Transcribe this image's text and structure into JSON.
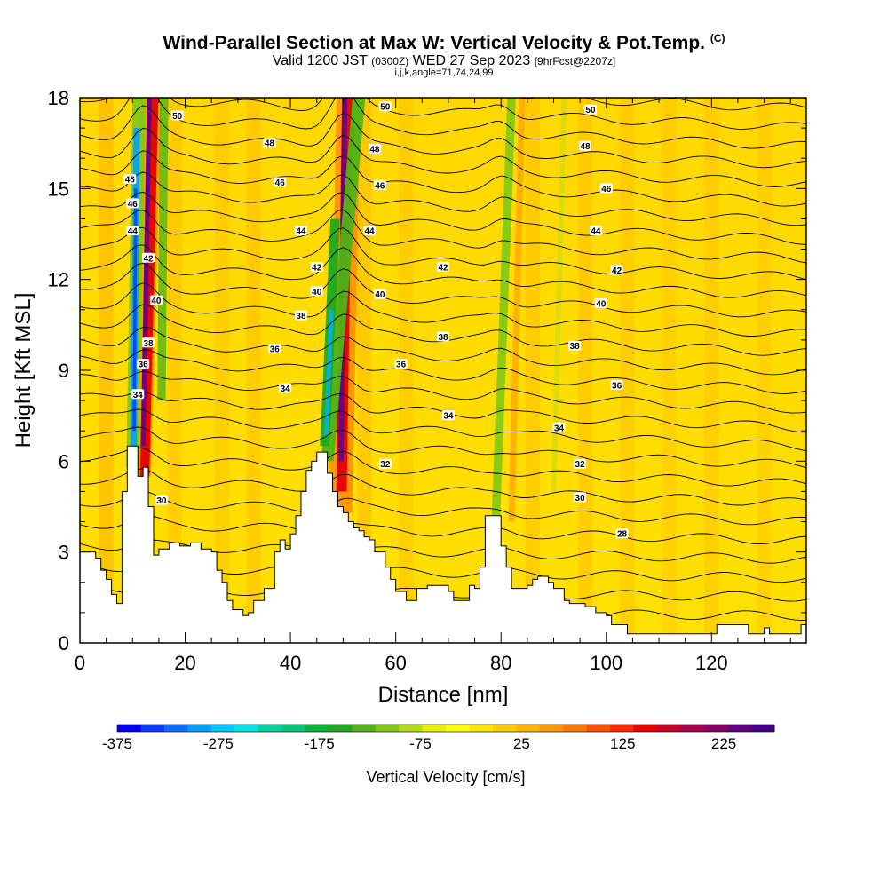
{
  "title": {
    "main": "Wind-Parallel Section at Max W: Vertical Velocity & Pot.Temp.",
    "copyright": "(C)",
    "valid_prefix": "Valid 1200 JST",
    "valid_utc": "(0300Z)",
    "valid_date": "WED 27 Sep 2023",
    "forecast": "[9hrFcst@2207z]",
    "params": "i,j,k,angle=71,74,24,99"
  },
  "chart_data": {
    "type": "heatmap",
    "xlabel": "Distance [nm]",
    "ylabel": "Height [Kft MSL]",
    "xlim": [
      0,
      138
    ],
    "ylim": [
      0,
      18
    ],
    "x_ticks": [
      "0",
      "20",
      "40",
      "60",
      "80",
      "100",
      "120"
    ],
    "x_tick_values": [
      0,
      20,
      40,
      60,
      80,
      100,
      120
    ],
    "y_ticks": [
      "0",
      "3",
      "6",
      "9",
      "12",
      "15",
      "18"
    ],
    "y_tick_values": [
      0,
      3,
      6,
      9,
      12,
      15,
      18
    ],
    "colorbar": {
      "label": "Vertical Velocity [cm/s]",
      "tick_labels": [
        "-375",
        "-275",
        "-175",
        "-75",
        "25",
        "125",
        "225"
      ],
      "min": -375,
      "max": 275,
      "colors": [
        "#0000ff",
        "#0a3cff",
        "#0a6eff",
        "#00a0ff",
        "#00c8ff",
        "#00e6e6",
        "#00d2a0",
        "#00c878",
        "#00b43c",
        "#1eaa1e",
        "#50b414",
        "#82c814",
        "#b4dc14",
        "#e6f000",
        "#ffff00",
        "#ffe600",
        "#ffcc00",
        "#ffb400",
        "#ff9600",
        "#ff7800",
        "#ff5000",
        "#ff2800",
        "#e60000",
        "#c80028",
        "#aa0050",
        "#8c0064",
        "#640082",
        "#46008c"
      ]
    },
    "contour_variable": "Potential temperature",
    "contour_levels": [
      28,
      30,
      32,
      34,
      36,
      38,
      40,
      42,
      44,
      46,
      48,
      50
    ],
    "contour_labels": [
      "28",
      "30",
      "32",
      "34",
      "36",
      "38",
      "40",
      "42",
      "44",
      "46",
      "48",
      "50"
    ],
    "updraft_cores_nm": [
      12,
      50
    ],
    "downdraft_cores_nm": [
      10.5,
      47.5
    ],
    "weak_downdraft_nm": [
      78,
      90
    ],
    "terrain_kft": [
      [
        0,
        3.0
      ],
      [
        2,
        3.0
      ],
      [
        3,
        2.8
      ],
      [
        4,
        2.4
      ],
      [
        5,
        2.1
      ],
      [
        6,
        1.6
      ],
      [
        7,
        1.3
      ],
      [
        8,
        5.0
      ],
      [
        9,
        6.5
      ],
      [
        10,
        6.5
      ],
      [
        11,
        5.5
      ],
      [
        12,
        5.8
      ],
      [
        13,
        4.5
      ],
      [
        14,
        2.9
      ],
      [
        15,
        3.1
      ],
      [
        17,
        3.3
      ],
      [
        19,
        3.2
      ],
      [
        21,
        3.3
      ],
      [
        23,
        3.1
      ],
      [
        25,
        3.0
      ],
      [
        26,
        2.4
      ],
      [
        27,
        2.0
      ],
      [
        28,
        1.4
      ],
      [
        29,
        1.1
      ],
      [
        30,
        1.1
      ],
      [
        31,
        0.9
      ],
      [
        32,
        1.0
      ],
      [
        33,
        1.4
      ],
      [
        35,
        1.8
      ],
      [
        37,
        3.0
      ],
      [
        38,
        3.4
      ],
      [
        39,
        3.1
      ],
      [
        40,
        3.6
      ],
      [
        41,
        4.2
      ],
      [
        42,
        5.0
      ],
      [
        43,
        5.7
      ],
      [
        44,
        6.0
      ],
      [
        45,
        6.3
      ],
      [
        46,
        6.3
      ],
      [
        47,
        5.6
      ],
      [
        48,
        5.0
      ],
      [
        49,
        4.5
      ],
      [
        50,
        4.3
      ],
      [
        51,
        4.0
      ],
      [
        52,
        3.8
      ],
      [
        53,
        3.7
      ],
      [
        54,
        3.5
      ],
      [
        55,
        3.4
      ],
      [
        56,
        3.0
      ],
      [
        58,
        2.5
      ],
      [
        59,
        2.1
      ],
      [
        60,
        1.7
      ],
      [
        62,
        1.4
      ],
      [
        63,
        1.4
      ],
      [
        64,
        1.8
      ],
      [
        66,
        1.9
      ],
      [
        68,
        1.9
      ],
      [
        70,
        1.7
      ],
      [
        71,
        1.4
      ],
      [
        72,
        1.4
      ],
      [
        74,
        1.9
      ],
      [
        75,
        1.8
      ],
      [
        76,
        2.5
      ],
      [
        77,
        4.2
      ],
      [
        79,
        4.2
      ],
      [
        80,
        3.2
      ],
      [
        81,
        2.5
      ],
      [
        82,
        1.8
      ],
      [
        83,
        1.8
      ],
      [
        85,
        1.9
      ],
      [
        86,
        2.1
      ],
      [
        87,
        2.2
      ],
      [
        89,
        2.0
      ],
      [
        90,
        1.8
      ],
      [
        92,
        1.4
      ],
      [
        93,
        1.3
      ],
      [
        96,
        1.2
      ],
      [
        98,
        1.0
      ],
      [
        100,
        0.9
      ],
      [
        101,
        0.6
      ],
      [
        103,
        0.6
      ],
      [
        104,
        0.3
      ],
      [
        120,
        0.3
      ],
      [
        121,
        0.6
      ],
      [
        126,
        0.6
      ],
      [
        127,
        0.3
      ],
      [
        129,
        0.3
      ],
      [
        130,
        0.5
      ],
      [
        131,
        0.3
      ],
      [
        134,
        0.3
      ],
      [
        135,
        0.3
      ],
      [
        137,
        0.6
      ],
      [
        138,
        0.6
      ]
    ]
  }
}
